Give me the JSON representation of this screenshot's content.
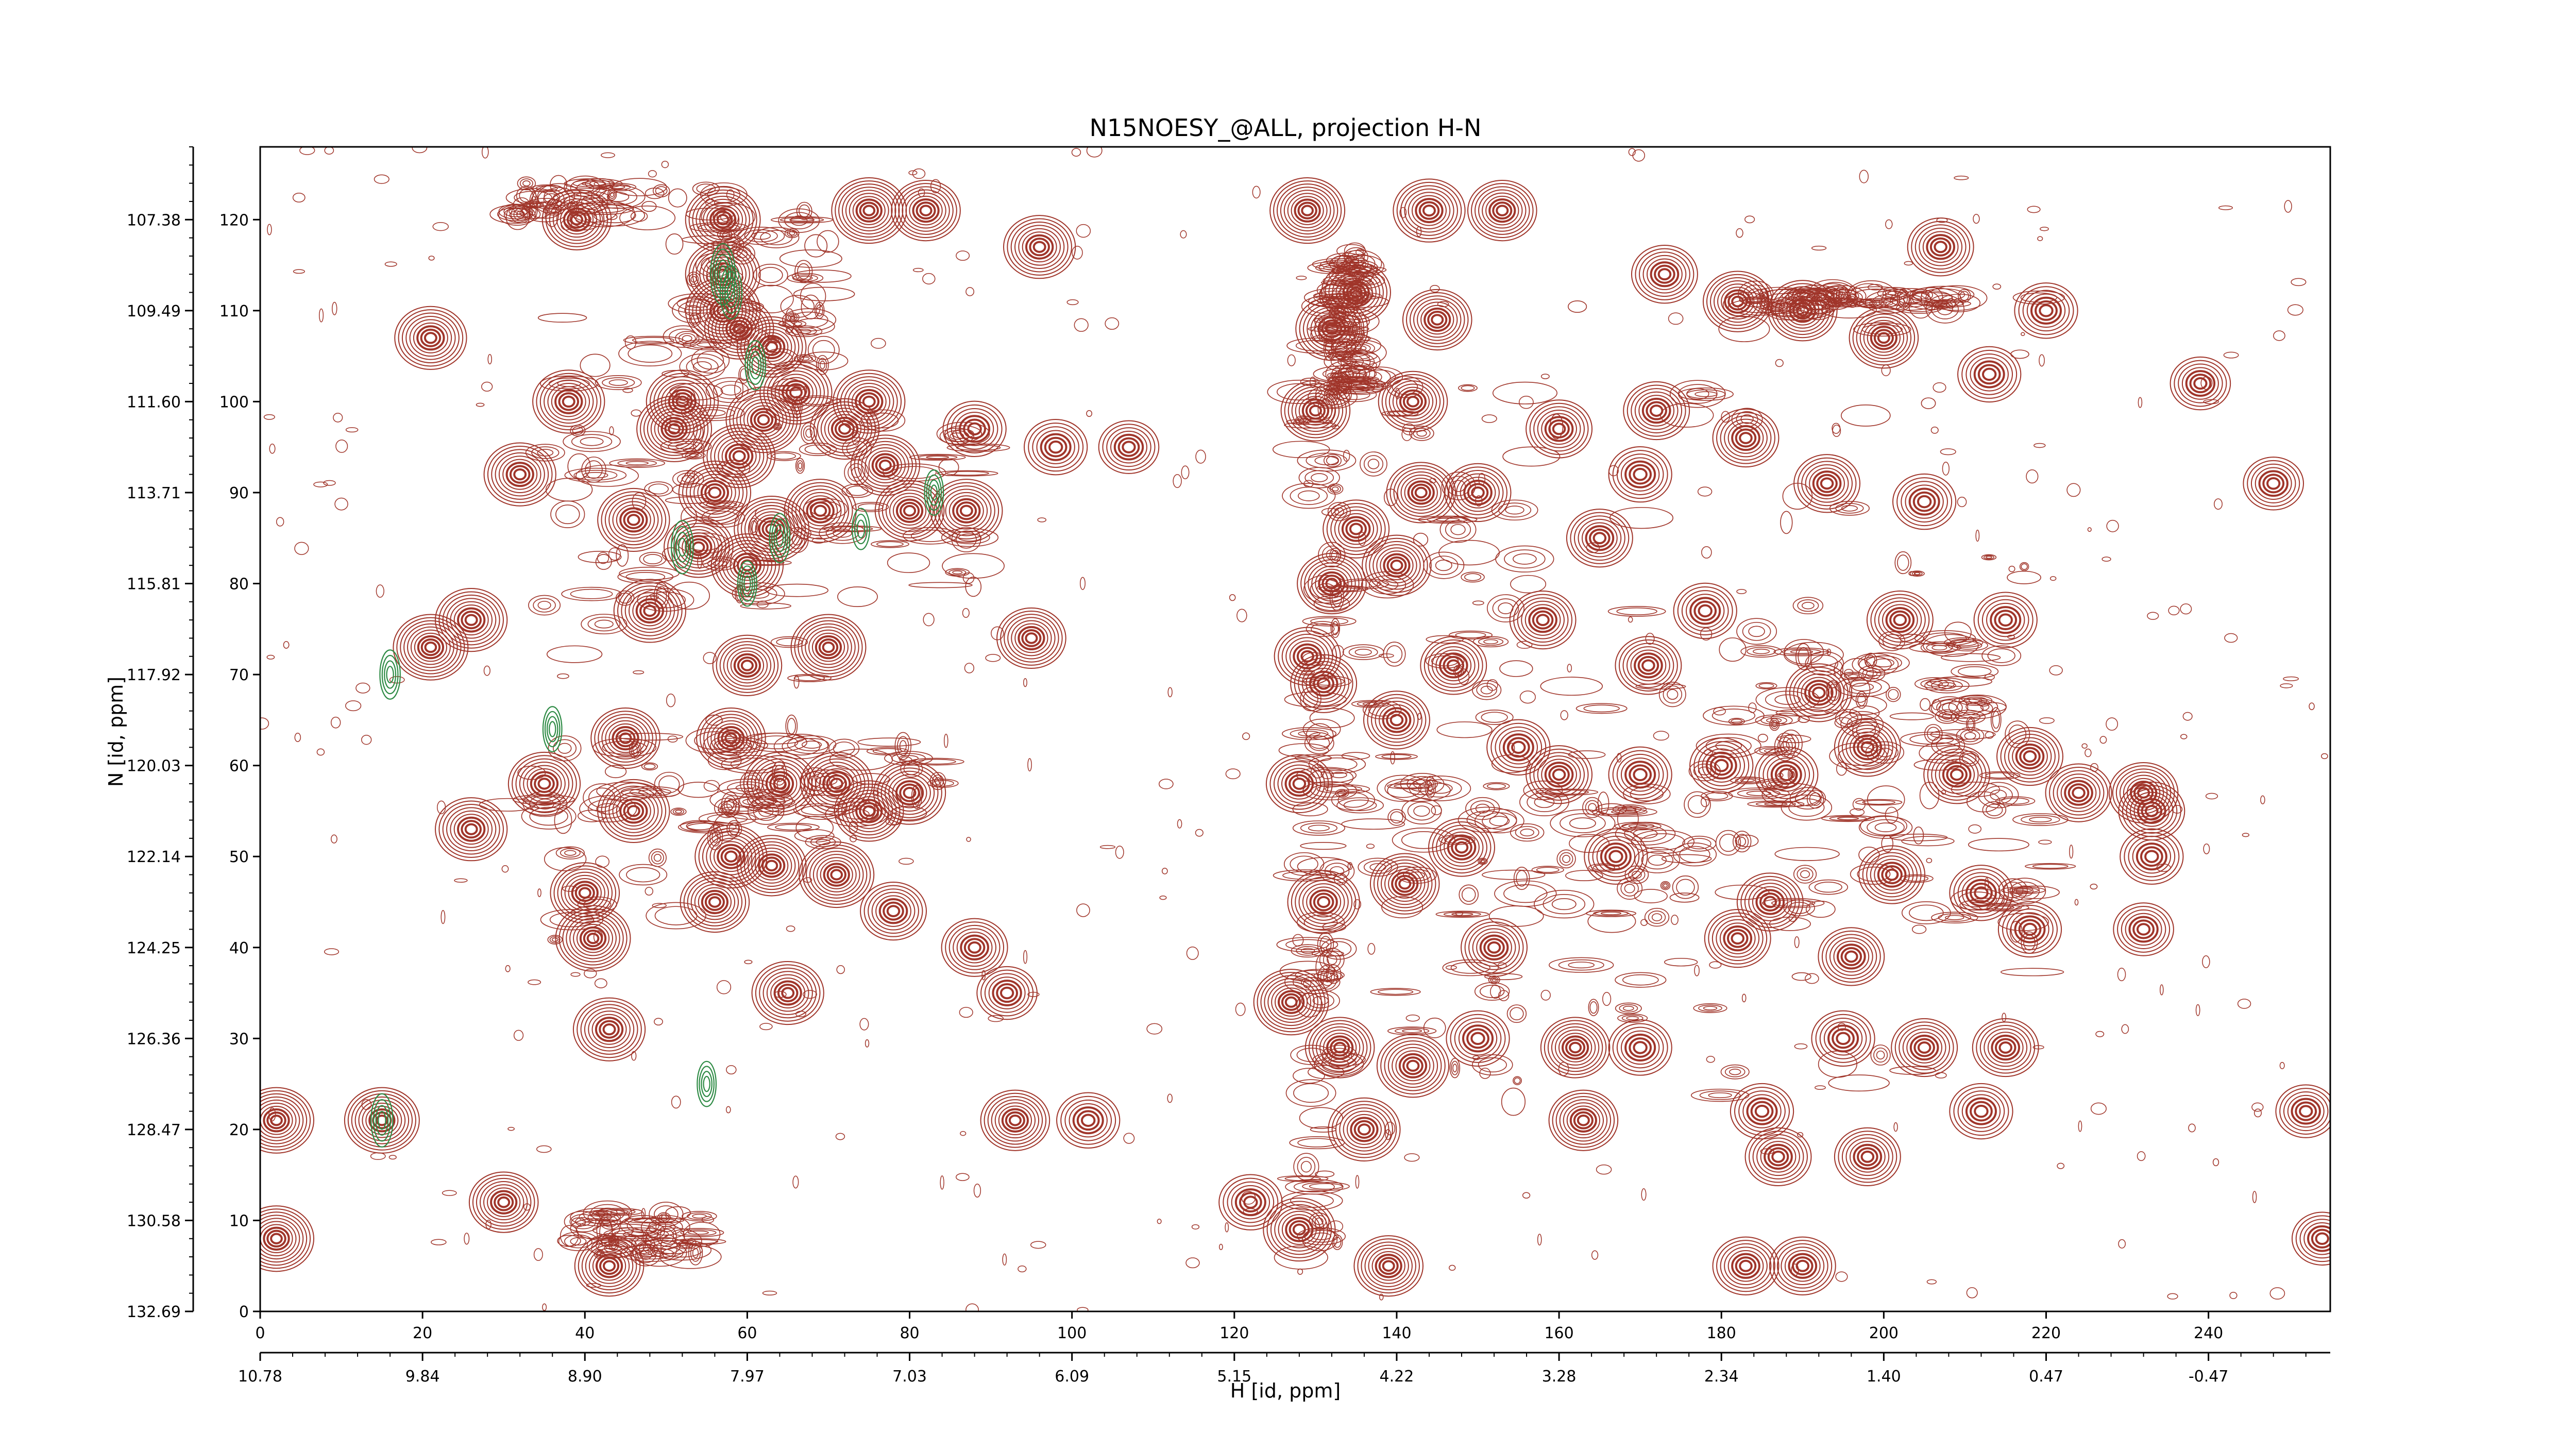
{
  "chart_data": {
    "type": "contour",
    "title": "N15NOESY_@ALL, projection H-N",
    "xlabel": "H [id, ppm]",
    "ylabel": "N [id, ppm]",
    "x_index_range": [
      0,
      255
    ],
    "y_index_range": [
      0,
      128
    ],
    "x_index_ticks": [
      "0",
      "20",
      "40",
      "60",
      "80",
      "100",
      "120",
      "140",
      "160",
      "180",
      "200",
      "220",
      "240"
    ],
    "y_index_ticks": [
      "0",
      "10",
      "20",
      "30",
      "40",
      "50",
      "60",
      "70",
      "80",
      "90",
      "100",
      "110",
      "120"
    ],
    "h_ppm_ticks": [
      "10.78",
      "9.84",
      "8.90",
      "7.97",
      "7.03",
      "6.09",
      "5.15",
      "4.22",
      "3.28",
      "2.34",
      "1.40",
      "0.47",
      "-0.47"
    ],
    "n_ppm_ticks": [
      "132.69",
      "130.58",
      "128.47",
      "126.36",
      "124.25",
      "122.14",
      "120.03",
      "117.92",
      "115.81",
      "113.71",
      "111.60",
      "109.49",
      "107.38"
    ],
    "colors": {
      "positive": "#a0352a",
      "negative": "#2e8b45"
    },
    "peaks": [
      [
        2,
        8,
        1
      ],
      [
        2,
        21,
        1
      ],
      [
        15,
        21,
        1
      ],
      [
        21,
        107,
        0.9
      ],
      [
        26,
        53,
        0.9
      ],
      [
        26,
        76,
        0.9
      ],
      [
        21,
        73,
        1
      ],
      [
        32,
        92,
        0.9
      ],
      [
        38,
        100,
        0.9
      ],
      [
        39,
        120,
        0.8
      ],
      [
        41,
        41,
        1
      ],
      [
        43,
        31,
        0.9
      ],
      [
        43,
        5,
        0.8
      ],
      [
        40,
        46,
        0.8
      ],
      [
        35,
        58,
        0.9
      ],
      [
        30,
        12,
        0.8
      ],
      [
        45,
        63,
        0.8
      ],
      [
        46,
        55,
        0.9
      ],
      [
        48,
        77,
        0.9
      ],
      [
        46,
        87,
        0.9
      ],
      [
        51,
        97,
        1
      ],
      [
        52,
        100,
        0.9
      ],
      [
        54,
        84,
        0.8
      ],
      [
        56,
        90,
        0.9
      ],
      [
        56,
        45,
        0.8
      ],
      [
        58,
        63,
        0.8
      ],
      [
        58,
        50,
        0.9
      ],
      [
        59,
        94,
        0.9
      ],
      [
        62,
        98,
        1
      ],
      [
        63,
        86,
        1
      ],
      [
        64,
        58,
        0.9
      ],
      [
        57,
        114,
        1
      ],
      [
        57,
        110,
        1
      ],
      [
        57,
        120,
        1
      ],
      [
        60,
        82,
        0.9
      ],
      [
        60,
        71,
        0.8
      ],
      [
        63,
        49,
        0.8
      ],
      [
        65,
        35,
        0.9
      ],
      [
        59,
        108,
        0.8
      ],
      [
        63,
        106,
        0.8
      ],
      [
        66,
        101,
        0.9
      ],
      [
        69,
        88,
        0.9
      ],
      [
        70,
        73,
        1
      ],
      [
        71,
        48,
        1
      ],
      [
        71,
        58,
        0.9
      ],
      [
        72,
        97,
        0.8
      ],
      [
        75,
        55,
        0.8
      ],
      [
        75,
        121,
        1
      ],
      [
        77,
        93,
        0.8
      ],
      [
        75,
        100,
        0.9
      ],
      [
        80,
        88,
        0.8
      ],
      [
        80,
        57,
        0.9
      ],
      [
        78,
        44,
        0.7
      ],
      [
        82,
        121,
        0.8
      ],
      [
        87,
        88,
        0.9
      ],
      [
        88,
        40,
        0.7
      ],
      [
        88,
        97,
        0.6
      ],
      [
        92,
        35,
        0.5
      ],
      [
        93,
        21,
        0.8
      ],
      [
        95,
        74,
        0.8
      ],
      [
        96,
        117,
        0.9
      ],
      [
        98,
        95,
        0.6
      ],
      [
        102,
        21,
        0.6
      ],
      [
        107,
        95,
        0.5
      ],
      [
        122,
        12,
        0.6
      ],
      [
        127,
        34,
        1
      ],
      [
        128,
        9,
        0.9
      ],
      [
        128,
        58,
        0.7
      ],
      [
        129,
        121,
        1
      ],
      [
        131,
        45,
        0.9
      ],
      [
        129,
        72,
        0.7
      ],
      [
        130,
        99,
        0.8
      ],
      [
        131,
        69,
        0.7
      ],
      [
        132,
        108,
        0.9
      ],
      [
        132,
        80,
        0.8
      ],
      [
        135,
        86,
        0.7
      ],
      [
        133,
        29,
        0.8
      ],
      [
        135,
        112,
        0.8
      ],
      [
        136,
        20,
        0.9
      ],
      [
        139,
        5,
        0.8
      ],
      [
        140,
        82,
        0.8
      ],
      [
        140,
        65,
        0.7
      ],
      [
        141,
        47,
        0.8
      ],
      [
        142,
        27,
        0.9
      ],
      [
        142,
        100,
        0.8
      ],
      [
        143,
        90,
        0.8
      ],
      [
        144,
        121,
        0.9
      ],
      [
        145,
        109,
        0.8
      ],
      [
        147,
        71,
        0.7
      ],
      [
        148,
        51,
        0.7
      ],
      [
        150,
        30,
        0.6
      ],
      [
        150,
        90,
        0.7
      ],
      [
        152,
        40,
        0.7
      ],
      [
        153,
        121,
        0.8
      ],
      [
        155,
        62,
        0.6
      ],
      [
        158,
        76,
        0.7
      ],
      [
        160,
        59,
        0.7
      ],
      [
        160,
        97,
        0.7
      ],
      [
        162,
        29,
        0.8
      ],
      [
        163,
        21,
        0.8
      ],
      [
        165,
        85,
        0.7
      ],
      [
        167,
        50,
        0.6
      ],
      [
        170,
        59,
        0.6
      ],
      [
        170,
        92,
        0.6
      ],
      [
        170,
        29,
        0.6
      ],
      [
        171,
        71,
        0.7
      ],
      [
        172,
        99,
        0.7
      ],
      [
        173,
        114,
        0.7
      ],
      [
        178,
        77,
        0.6
      ],
      [
        180,
        60,
        0.6
      ],
      [
        182,
        41,
        0.7
      ],
      [
        182,
        111,
        0.8
      ],
      [
        183,
        5,
        0.7
      ],
      [
        183,
        96,
        0.7
      ],
      [
        185,
        22,
        0.6
      ],
      [
        186,
        45,
        0.7
      ],
      [
        187,
        17,
        0.7
      ],
      [
        188,
        59,
        0.6
      ],
      [
        190,
        110,
        0.8
      ],
      [
        190,
        5,
        0.7
      ],
      [
        192,
        68,
        0.7
      ],
      [
        193,
        91,
        0.7
      ],
      [
        195,
        30,
        0.6
      ],
      [
        196,
        39,
        0.7
      ],
      [
        198,
        17,
        0.7
      ],
      [
        198,
        62,
        0.7
      ],
      [
        200,
        107,
        0.8
      ],
      [
        201,
        48,
        0.7
      ],
      [
        202,
        76,
        0.7
      ],
      [
        205,
        29,
        0.7
      ],
      [
        205,
        89,
        0.6
      ],
      [
        207,
        117,
        0.7
      ],
      [
        209,
        59,
        0.7
      ],
      [
        212,
        46,
        0.6
      ],
      [
        212,
        22,
        0.6
      ],
      [
        213,
        103,
        0.6
      ],
      [
        215,
        29,
        0.7
      ],
      [
        215,
        76,
        0.6
      ],
      [
        218,
        61,
        0.7
      ],
      [
        218,
        42,
        0.6
      ],
      [
        220,
        110,
        0.6
      ],
      [
        224,
        57,
        0.7
      ],
      [
        232,
        57,
        0.8
      ],
      [
        233,
        55,
        0.7
      ],
      [
        233,
        50,
        0.6
      ],
      [
        232,
        42,
        0.5
      ],
      [
        239,
        102,
        0.5
      ],
      [
        248,
        91,
        0.5
      ],
      [
        252,
        22,
        0.5
      ],
      [
        254,
        8,
        0.5
      ]
    ],
    "ridges": [
      [
        128,
        133,
        5,
        112,
        0.55
      ],
      [
        132,
        136,
        100,
        117,
        0.5
      ],
      [
        130,
        220,
        45,
        75,
        0.5
      ],
      [
        128,
        221,
        42,
        58,
        0.55
      ],
      [
        162,
        220,
        22,
        112,
        0.35
      ],
      [
        130,
        160,
        22,
        105,
        0.4
      ],
      [
        35,
        70,
        40,
        110,
        0.45
      ],
      [
        30,
        85,
        53,
        63,
        0.4
      ],
      [
        40,
        90,
        78,
        98,
        0.4
      ],
      [
        50,
        70,
        100,
        122,
        0.4
      ],
      [
        183,
        210,
        110,
        112,
        0.4
      ],
      [
        180,
        212,
        61,
        74,
        0.4
      ],
      [
        30,
        58,
        120,
        124,
        0.35
      ],
      [
        38,
        55,
        6,
        11,
        0.35
      ]
    ],
    "negative_peaks": [
      [
        57,
        114,
        0.8
      ],
      [
        58,
        112,
        0.6
      ],
      [
        61,
        104,
        0.5
      ],
      [
        64,
        85,
        0.5
      ],
      [
        60,
        80,
        0.4
      ],
      [
        52,
        84,
        0.6
      ],
      [
        15,
        21,
        0.6
      ],
      [
        16,
        70,
        0.5
      ],
      [
        36,
        64,
        0.4
      ],
      [
        83,
        90,
        0.4
      ],
      [
        55,
        25,
        0.4
      ],
      [
        74,
        86,
        0.3
      ]
    ]
  }
}
